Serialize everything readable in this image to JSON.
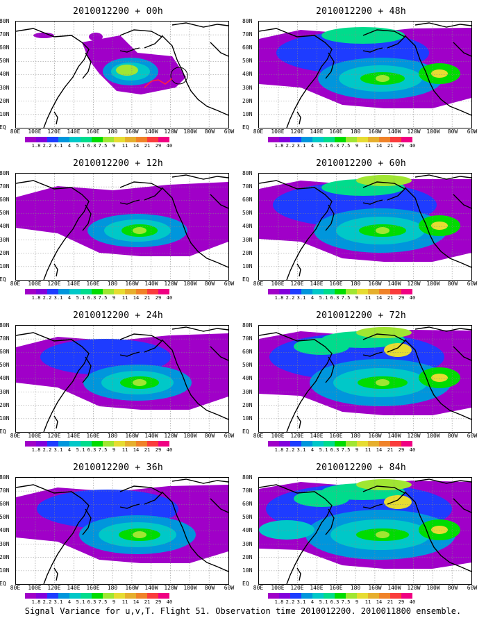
{
  "caption": "Signal Variance for u,v,T. Flight 51. Observation time 2010012200. 2010011800 ensemble.",
  "lat_labels": [
    "80N",
    "70N",
    "60N",
    "50N",
    "40N",
    "30N",
    "20N",
    "10N",
    "EQ"
  ],
  "lon_labels": [
    "80E",
    "100E",
    "120E",
    "140E",
    "160E",
    "180",
    "160W",
    "140W",
    "120W",
    "100W",
    "80W",
    "60W"
  ],
  "colorbar": {
    "labels": [
      "1.8",
      "2.2",
      "3.1",
      "4",
      "5.1",
      "6.3",
      "7.5",
      "9",
      "11",
      "14",
      "21",
      "29",
      "40"
    ],
    "colors": [
      "#a000c8",
      "#8200dc",
      "#1e3cff",
      "#0096dc",
      "#00c8c8",
      "#00dc8c",
      "#00dc00",
      "#a0e632",
      "#e6dc32",
      "#e6af2d",
      "#f08228",
      "#fa3c3c",
      "#f00082"
    ]
  },
  "panels": [
    {
      "title": "2010012200 + 00h",
      "level": 1,
      "marker": true
    },
    {
      "title": "2010012200 + 48h",
      "level": 5,
      "marker": false
    },
    {
      "title": "2010012200 + 12h",
      "level": 2,
      "marker": false
    },
    {
      "title": "2010012200 + 60h",
      "level": 6,
      "marker": false
    },
    {
      "title": "2010012200 + 24h",
      "level": 3,
      "marker": false
    },
    {
      "title": "2010012200 + 72h",
      "level": 7,
      "marker": false
    },
    {
      "title": "2010012200 + 36h",
      "level": 4,
      "marker": false
    },
    {
      "title": "2010012200 + 84h",
      "level": 8,
      "marker": false
    }
  ]
}
